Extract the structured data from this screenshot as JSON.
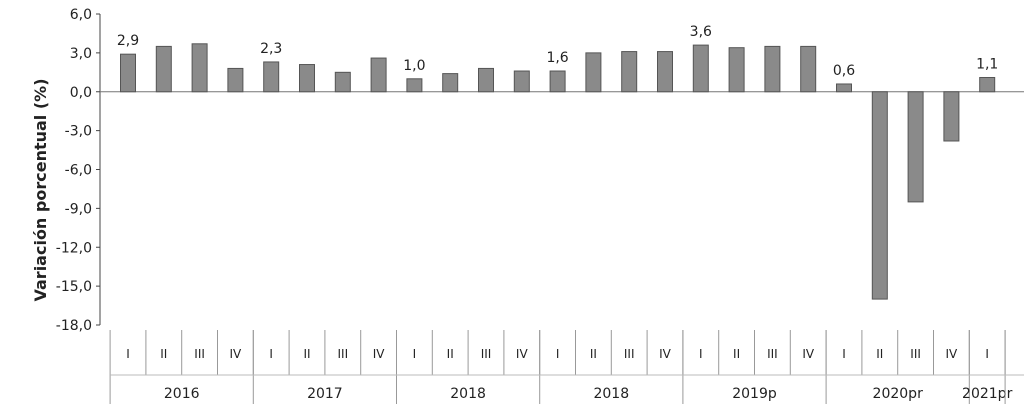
{
  "chart_data": {
    "type": "bar",
    "ylabel": "Variación porcentual  (%)",
    "ylim": [
      -18,
      6
    ],
    "yticks": [
      "6,0",
      "3,0",
      "0,0",
      "-3,0",
      "-6,0",
      "-9,0",
      "-12,0",
      "-15,0",
      "-18,0"
    ],
    "grid": false,
    "legend": "none",
    "bar_color": "#8a8a8a",
    "categories": [
      "I",
      "II",
      "III",
      "IV",
      "I",
      "II",
      "III",
      "IV",
      "I",
      "II",
      "III",
      "IV",
      "I",
      "II",
      "III",
      "IV",
      "I",
      "II",
      "III",
      "IV",
      "I",
      "II",
      "III",
      "IV",
      "I"
    ],
    "groups": [
      {
        "label": "2016",
        "quarters": 4
      },
      {
        "label": "2017",
        "quarters": 4
      },
      {
        "label": "2018",
        "quarters": 4
      },
      {
        "label": "2018",
        "quarters": 4
      },
      {
        "label": "2019p",
        "quarters": 4
      },
      {
        "label": "2020pr",
        "quarters": 4
      },
      {
        "label": "2021pr",
        "quarters": 1
      }
    ],
    "values": [
      2.9,
      3.5,
      3.7,
      1.8,
      2.3,
      2.1,
      1.5,
      2.6,
      1.0,
      1.4,
      1.8,
      1.6,
      1.6,
      3.0,
      3.1,
      3.1,
      3.6,
      3.4,
      3.5,
      3.5,
      0.6,
      -16.0,
      -8.5,
      -3.8,
      1.1
    ],
    "data_labels": [
      {
        "index": 0,
        "text": "2,9"
      },
      {
        "index": 4,
        "text": "2,3"
      },
      {
        "index": 8,
        "text": "1,0"
      },
      {
        "index": 12,
        "text": "1,6"
      },
      {
        "index": 16,
        "text": "3,6"
      },
      {
        "index": 20,
        "text": "0,6"
      },
      {
        "index": 24,
        "text": "1,1"
      }
    ]
  }
}
